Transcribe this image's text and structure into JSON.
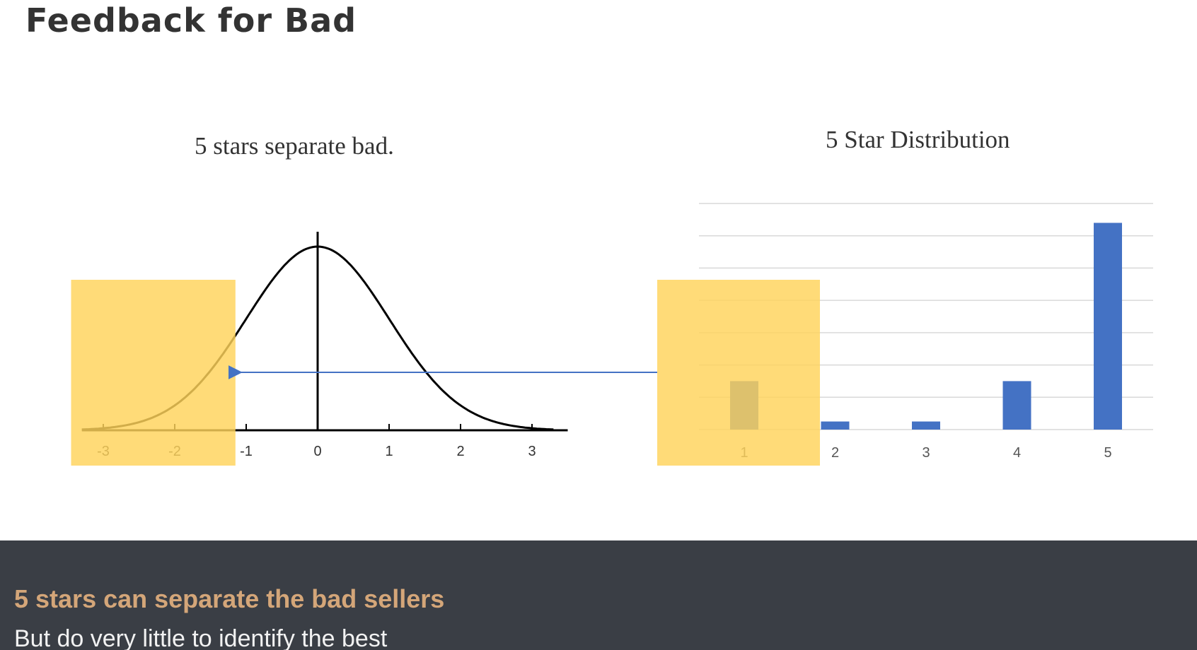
{
  "page": {
    "title": "Feedback for Bad"
  },
  "footer": {
    "headline": "5 stars can separate the bad sellers",
    "subtext": "But do very little to identify the best"
  },
  "colors": {
    "highlight": "#ffd35a",
    "bar": "#4472c4",
    "curve": "#000000",
    "arrow": "#4472c4",
    "gridline": "#d9d9d9",
    "footer_bg": "#3a3e45",
    "footer_headline": "#d4a679"
  },
  "chart_data": [
    {
      "type": "line",
      "title": "5 stars separate bad.",
      "x_ticks": [
        -3,
        -2,
        -1,
        0,
        1,
        2,
        3
      ],
      "xlim": [
        -3.3,
        3.5
      ],
      "curve": "standard normal density",
      "highlight_x_range": [
        -3.5,
        -1.2
      ]
    },
    {
      "type": "bar",
      "title": "5 Star Distribution",
      "categories": [
        "1",
        "2",
        "3",
        "4",
        "5"
      ],
      "values": [
        15,
        2.5,
        2.5,
        15,
        64
      ],
      "ylim": [
        0,
        70
      ],
      "grid": true,
      "highlight_category": "1"
    }
  ],
  "annotations": {
    "arrow": "from 5 Star Distribution highlight to left tail of normal curve"
  }
}
